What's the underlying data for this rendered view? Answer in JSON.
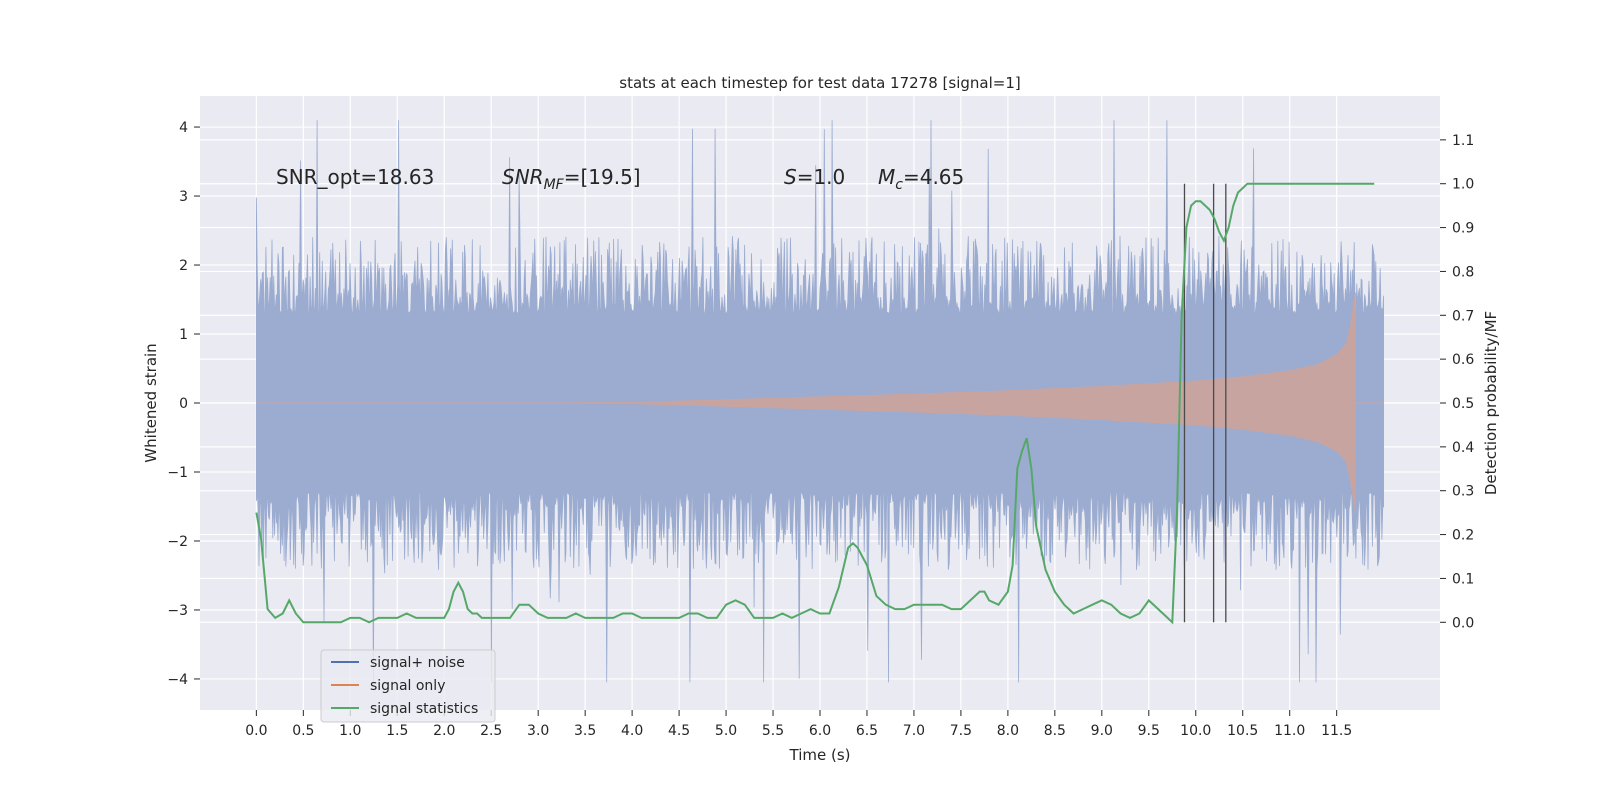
{
  "chart_data": {
    "type": "line",
    "title": "stats at each timestep for test data 17278 [signal=1]",
    "xlabel": "Time (s)",
    "ylabel_left": "Whitened strain",
    "ylabel_right": "Detection probability/MF",
    "xlim": [
      -0.6,
      12.6
    ],
    "ylim_left": [
      -4.45,
      4.45
    ],
    "ylim_right": [
      -0.2,
      1.2
    ],
    "x_ticks": [
      0.0,
      0.5,
      1.0,
      1.5,
      2.0,
      2.5,
      3.0,
      3.5,
      4.0,
      4.5,
      5.0,
      5.5,
      6.0,
      6.5,
      7.0,
      7.5,
      8.0,
      8.5,
      9.0,
      9.5,
      10.0,
      10.5,
      11.0,
      11.5
    ],
    "x_tick_labels": [
      "0.0",
      "0.5",
      "1.0",
      "1.5",
      "2.0",
      "2.5",
      "3.0",
      "3.5",
      "4.0",
      "4.5",
      "5.0",
      "5.5",
      "6.0",
      "6.5",
      "7.0",
      "7.5",
      "8.0",
      "8.5",
      "9.0",
      "9.5",
      "10.0",
      "10.5",
      "11.0",
      "11.5"
    ],
    "y_ticks_left": [
      4,
      3,
      2,
      1,
      0,
      -1,
      -2,
      -3,
      -4
    ],
    "y_tick_labels_left": [
      "4",
      "3",
      "2",
      "1",
      "0",
      "−1",
      "−2",
      "−3",
      "−4"
    ],
    "y_ticks_right": [
      1.1,
      1.0,
      0.9,
      0.8,
      0.7,
      0.6,
      0.5,
      0.4,
      0.3,
      0.2,
      0.1,
      0.0
    ],
    "y_tick_labels_right": [
      "1.1",
      "1.0",
      "0.9",
      "0.8",
      "0.7",
      "0.6",
      "0.5",
      "0.4",
      "0.3",
      "0.2",
      "0.1",
      "0.0"
    ],
    "annotations": {
      "snr_opt": "SNR_opt=18.63",
      "snr_mf_main": "SNR",
      "snr_mf_sub": "MF",
      "snr_mf_value": "=[19.5]",
      "s_symbol": "S",
      "s_value": "=1.0",
      "mc_symbol": "M",
      "mc_sub": "c",
      "mc_value": "=4.65"
    },
    "vertical_lines_x": [
      9.88,
      10.19,
      10.32
    ],
    "vertical_lines_range": [
      0.0,
      1.0
    ],
    "noise_envelope": {
      "t_start": 0.0,
      "t_end": 12.0,
      "core_amplitude": 1.3,
      "typical_peak": 2.0,
      "max_peak": 4.1,
      "min_trough": -4.05
    },
    "signal_envelope": {
      "t": [
        0.0,
        3.0,
        4.0,
        5.0,
        6.0,
        7.0,
        8.0,
        9.0,
        10.0,
        10.5,
        11.0,
        11.3,
        11.5,
        11.6,
        11.65,
        11.7
      ],
      "amp": [
        0.0,
        0.0,
        0.01,
        0.05,
        0.09,
        0.13,
        0.18,
        0.24,
        0.32,
        0.38,
        0.47,
        0.56,
        0.7,
        0.85,
        1.15,
        1.6
      ]
    },
    "signal_statistics": {
      "t": [
        0.0,
        0.05,
        0.12,
        0.2,
        0.28,
        0.35,
        0.42,
        0.5,
        0.6,
        0.7,
        0.8,
        0.9,
        1.0,
        1.1,
        1.2,
        1.3,
        1.4,
        1.5,
        1.6,
        1.7,
        1.8,
        1.9,
        2.0,
        2.05,
        2.1,
        2.15,
        2.2,
        2.25,
        2.3,
        2.35,
        2.4,
        2.5,
        2.6,
        2.7,
        2.8,
        2.9,
        3.0,
        3.1,
        3.2,
        3.3,
        3.4,
        3.5,
        3.6,
        3.7,
        3.8,
        3.9,
        4.0,
        4.1,
        4.2,
        4.3,
        4.4,
        4.5,
        4.6,
        4.7,
        4.8,
        4.9,
        5.0,
        5.1,
        5.2,
        5.3,
        5.4,
        5.5,
        5.6,
        5.7,
        5.8,
        5.9,
        6.0,
        6.1,
        6.2,
        6.3,
        6.35,
        6.4,
        6.45,
        6.5,
        6.6,
        6.7,
        6.8,
        6.9,
        7.0,
        7.1,
        7.2,
        7.3,
        7.4,
        7.5,
        7.6,
        7.7,
        7.75,
        7.8,
        7.9,
        8.0,
        8.05,
        8.1,
        8.15,
        8.2,
        8.25,
        8.3,
        8.4,
        8.5,
        8.6,
        8.7,
        8.8,
        8.9,
        9.0,
        9.1,
        9.2,
        9.3,
        9.4,
        9.5,
        9.6,
        9.7,
        9.75,
        9.8,
        9.85,
        9.9,
        9.95,
        10.0,
        10.05,
        10.1,
        10.15,
        10.2,
        10.25,
        10.3,
        10.35,
        10.4,
        10.45,
        10.5,
        10.55,
        10.6,
        10.8,
        11.0,
        11.2,
        11.4,
        11.6,
        11.8,
        11.9
      ],
      "p": [
        0.25,
        0.19,
        0.03,
        0.01,
        0.02,
        0.05,
        0.02,
        0.0,
        0.0,
        0.0,
        0.0,
        0.0,
        0.01,
        0.01,
        0.0,
        0.01,
        0.01,
        0.01,
        0.02,
        0.01,
        0.01,
        0.01,
        0.01,
        0.03,
        0.07,
        0.09,
        0.07,
        0.03,
        0.02,
        0.02,
        0.01,
        0.01,
        0.01,
        0.01,
        0.04,
        0.04,
        0.02,
        0.01,
        0.01,
        0.01,
        0.02,
        0.01,
        0.01,
        0.01,
        0.01,
        0.02,
        0.02,
        0.01,
        0.01,
        0.01,
        0.01,
        0.01,
        0.02,
        0.02,
        0.01,
        0.01,
        0.04,
        0.05,
        0.04,
        0.01,
        0.01,
        0.01,
        0.02,
        0.01,
        0.02,
        0.03,
        0.02,
        0.02,
        0.08,
        0.17,
        0.18,
        0.17,
        0.15,
        0.13,
        0.06,
        0.04,
        0.03,
        0.03,
        0.04,
        0.04,
        0.04,
        0.04,
        0.03,
        0.03,
        0.05,
        0.07,
        0.07,
        0.05,
        0.04,
        0.07,
        0.13,
        0.35,
        0.39,
        0.42,
        0.35,
        0.22,
        0.12,
        0.07,
        0.04,
        0.02,
        0.03,
        0.04,
        0.05,
        0.04,
        0.02,
        0.01,
        0.02,
        0.05,
        0.03,
        0.01,
        0.0,
        0.25,
        0.7,
        0.9,
        0.95,
        0.96,
        0.96,
        0.95,
        0.94,
        0.92,
        0.89,
        0.87,
        0.9,
        0.95,
        0.98,
        0.99,
        1.0,
        1.0,
        1.0,
        1.0,
        1.0,
        1.0,
        1.0,
        1.0,
        1.0
      ]
    },
    "legend": [
      {
        "label": "signal+ noise",
        "color": "#4c72b0"
      },
      {
        "label": "signal only",
        "color": "#dd8452"
      },
      {
        "label": "signal statistics",
        "color": "#55a868"
      }
    ],
    "legend_position": "lower-left",
    "grid": true,
    "colors": {
      "plot_background": "#eaeaf2",
      "grid": "#ffffff",
      "noise_fill": "#9bacd0",
      "signal_fill": "#c8a4a0",
      "statistics_line": "#55a868",
      "vertical_line": "#4a4a4a"
    }
  }
}
